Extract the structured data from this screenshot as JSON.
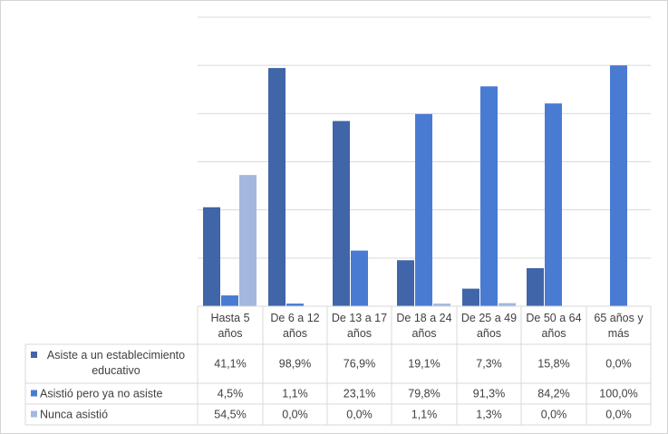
{
  "chart_data": {
    "type": "bar",
    "title": "",
    "xlabel": "",
    "ylabel": "",
    "ylim": [
      0,
      120
    ],
    "grid": true,
    "categories": [
      "Hasta 5 años",
      "De 6 a 12 años",
      "De 13 a 17 años",
      "De 18 a 24 años",
      "De 25 a 49 años",
      "De 50 a 64 años",
      "65 años y más"
    ],
    "category_lines": [
      [
        "Hasta 5",
        "años"
      ],
      [
        "De 6 a 12",
        "años"
      ],
      [
        "De 13 a 17",
        "años"
      ],
      [
        "De 18 a 24",
        "años"
      ],
      [
        "De 25 a 49",
        "años"
      ],
      [
        "De 50 a 64",
        "años"
      ],
      [
        "65 años y",
        "más"
      ]
    ],
    "series": [
      {
        "name": "Asiste a un establecimiento educativo",
        "name_lines": [
          "Asiste a un establecimiento",
          "educativo"
        ],
        "color": "#4065A8",
        "values": [
          41.1,
          98.9,
          76.9,
          19.1,
          7.3,
          15.8,
          0.0
        ],
        "labels": [
          "41,1%",
          "98,9%",
          "76,9%",
          "19,1%",
          "7,3%",
          "15,8%",
          "0,0%"
        ]
      },
      {
        "name": "Asistió pero ya no asiste",
        "name_lines": [
          "Asistió pero ya no asiste"
        ],
        "color": "#4A7BD3",
        "values": [
          4.5,
          1.1,
          23.1,
          79.8,
          91.3,
          84.2,
          100.0
        ],
        "labels": [
          "4,5%",
          "1,1%",
          "23,1%",
          "79,8%",
          "91,3%",
          "84,2%",
          "100,0%"
        ]
      },
      {
        "name": "Nunca asistió",
        "name_lines": [
          "Nunca asistió"
        ],
        "color": "#A3B7DF",
        "values": [
          54.5,
          0.0,
          0.0,
          1.1,
          1.3,
          0.0,
          0.0
        ],
        "labels": [
          "54,5%",
          "0,0%",
          "0,0%",
          "1,1%",
          "1,3%",
          "0,0%",
          "0,0%"
        ]
      }
    ]
  }
}
